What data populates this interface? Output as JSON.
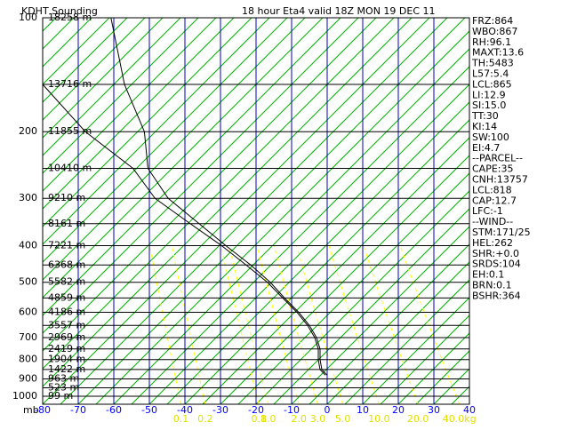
{
  "chart_data": {
    "type": "skewt",
    "title": "KDHT Sounding",
    "subtitle": "18 hour Eta4 valid 18Z MON 19 DEC 11",
    "ylabel": "mb",
    "xlim": [
      -80,
      40
    ],
    "xticks": [
      -80,
      -70,
      -60,
      -50,
      -40,
      -30,
      -20,
      -10,
      0,
      10,
      20,
      30,
      40
    ],
    "ylim": [
      1050,
      100
    ],
    "yticks": [
      100,
      200,
      300,
      400,
      500,
      600,
      700,
      800,
      900,
      1000
    ],
    "ylog": true,
    "height_levels": [
      100,
      150,
      200,
      250,
      300,
      350,
      400,
      450,
      500,
      550,
      600,
      650,
      700,
      750,
      800,
      850,
      900,
      950,
      1000
    ],
    "height_labels": [
      "18258 m",
      "13716 m",
      "11855 m",
      "10410 m",
      "9210 m",
      "8161 m",
      "7221 m",
      "6368 m",
      "5582 m",
      "4859 m",
      "4186 m",
      "3557 m",
      "2969 m",
      "2419 m",
      "1904 m",
      "1422 m",
      "963 m",
      "523 m",
      "99 m"
    ],
    "mixing_ratios": [
      0.1,
      0.2,
      {
        "value": 0.8,
        "label": "0.8"
      },
      {
        "value": 1,
        "label": "1.0"
      },
      {
        "value": 2,
        "label": "2.0"
      },
      {
        "value": 3,
        "label": "3.0"
      },
      {
        "value": 5,
        "label": "5.0"
      },
      {
        "value": 10,
        "label": "10.0"
      },
      {
        "value": 20,
        "label": "20.0"
      },
      {
        "value": 40,
        "label": "40.0kg"
      }
    ],
    "pressure": [
      100,
      150,
      200,
      250,
      300,
      350,
      400,
      450,
      500,
      550,
      600,
      650,
      700,
      750,
      800,
      850,
      880
    ],
    "series": [
      {
        "color": "#000000",
        "values": [
          -60.8,
          -57,
          -51.4,
          -50.4,
          -44.7,
          -36,
          -28.5,
          -21.5,
          -16,
          -12,
          -8,
          -5,
          -3,
          -2,
          -2,
          -1.5,
          0
        ]
      },
      {
        "color": "#000000",
        "values": [
          null,
          -80,
          -68,
          -54.6,
          -48.4,
          -38.5,
          -29.7,
          -22.8,
          -16.8,
          -12.5,
          -8.5,
          -5.5,
          -3.5,
          -2.5,
          -2.5,
          -2,
          -0.5
        ]
      }
    ],
    "indices": [
      "FRZ:864",
      "WBO:867",
      "RH:96.1",
      "MAXT:13.6",
      "TH:5483",
      "L57:5.4",
      "LCL:865",
      "LI:12.9",
      "SI:15.0",
      "TT:30",
      "KI:14",
      "SW:100",
      "EI:4.7",
      "--PARCEL--",
      "CAPE:35",
      "CNH:13757",
      "LCL:818",
      "CAP:12.7",
      "LFC:-1",
      "--WIND--",
      "STM:171/25",
      "HEL:262",
      "SHR:+0.0",
      "SRDS:104",
      "EH:0.1",
      "BRN:0.1",
      "BSHR:364"
    ]
  }
}
